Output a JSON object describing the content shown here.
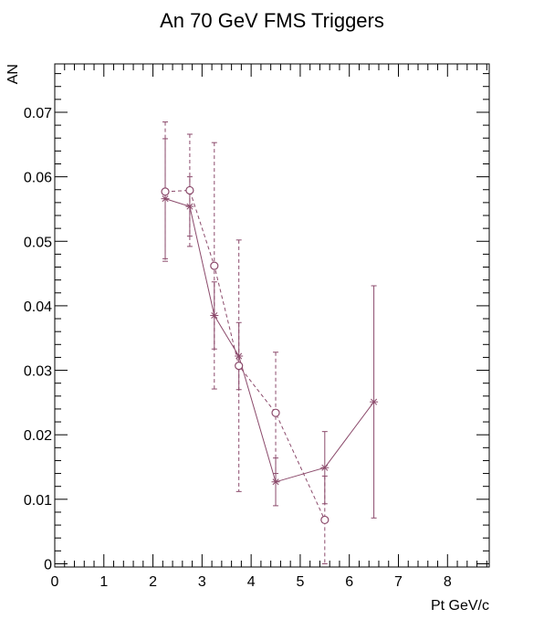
{
  "chart_data": {
    "type": "scatter",
    "title": "An 70 GeV FMS Triggers",
    "xlabel": "Pt GeV/c",
    "ylabel": "AN",
    "xlim": [
      0,
      8.85
    ],
    "ylim": [
      -0.0005,
      0.0775
    ],
    "grid": false,
    "x_ticks": [
      {
        "value": 0,
        "label": "0"
      },
      {
        "value": 1,
        "label": "1"
      },
      {
        "value": 2,
        "label": "2"
      },
      {
        "value": 3,
        "label": "3"
      },
      {
        "value": 4,
        "label": "4"
      },
      {
        "value": 5,
        "label": "5"
      },
      {
        "value": 6,
        "label": "6"
      },
      {
        "value": 7,
        "label": "7"
      },
      {
        "value": 8,
        "label": "8"
      }
    ],
    "y_ticks": [
      {
        "value": 0,
        "label": "0"
      },
      {
        "value": 0.01,
        "label": "0.01"
      },
      {
        "value": 0.02,
        "label": "0.02"
      },
      {
        "value": 0.03,
        "label": "0.03"
      },
      {
        "value": 0.04,
        "label": "0.04"
      },
      {
        "value": 0.05,
        "label": "0.05"
      },
      {
        "value": 0.06,
        "label": "0.06"
      },
      {
        "value": 0.07,
        "label": "0.07"
      }
    ],
    "series": [
      {
        "marker": "star",
        "line": "solid",
        "color": "#8b4a6b",
        "points": [
          {
            "x": 2.25,
            "y": 0.0566,
            "err": 0.0093
          },
          {
            "x": 2.75,
            "y": 0.0554,
            "err": 0.0046
          },
          {
            "x": 3.25,
            "y": 0.0385,
            "err": 0.0052
          },
          {
            "x": 3.75,
            "y": 0.0322,
            "err": 0.0052
          },
          {
            "x": 4.5,
            "y": 0.0127,
            "err": 0.0037
          },
          {
            "x": 5.5,
            "y": 0.0149,
            "err": 0.0056
          },
          {
            "x": 6.5,
            "y": 0.0251,
            "err": 0.018
          }
        ]
      },
      {
        "marker": "open-circle",
        "line": "dashed",
        "color": "#8b4a6b",
        "points": [
          {
            "x": 2.25,
            "y": 0.0577,
            "err": 0.0108
          },
          {
            "x": 2.75,
            "y": 0.0579,
            "err": 0.0087
          },
          {
            "x": 3.25,
            "y": 0.0462,
            "err": 0.0191
          },
          {
            "x": 3.75,
            "y": 0.0307,
            "err": 0.0195
          },
          {
            "x": 4.5,
            "y": 0.0234,
            "err": 0.0094
          },
          {
            "x": 5.5,
            "y": 0.0068,
            "err": 0.0068
          }
        ]
      }
    ]
  }
}
